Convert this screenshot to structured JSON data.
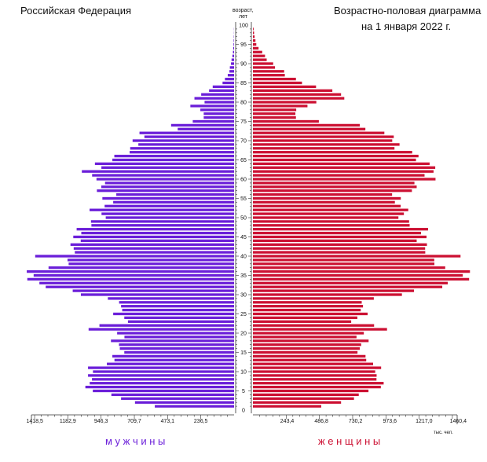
{
  "header": {
    "region": "Российская Федерация",
    "title_line1": "Возрастно-половая диаграмма",
    "title_line2": "на 1 января 2022 г."
  },
  "axis": {
    "age_label_line1": "возраст,",
    "age_label_line2": "лет",
    "unit_label": "тыс. чел."
  },
  "legend": {
    "male": "м у ж ч и н ы",
    "female": "ж е н щ и н ы"
  },
  "colors": {
    "male": "#6B1FD9",
    "female": "#CC1133"
  },
  "chart_data": {
    "type": "population-pyramid",
    "title": "Возрастно-половая диаграмма",
    "subtitle": "на 1 января 2022 г.",
    "age_ticks": [
      0,
      5,
      10,
      15,
      20,
      25,
      30,
      35,
      40,
      45,
      50,
      55,
      60,
      65,
      70,
      75,
      80,
      85,
      90,
      95,
      100
    ],
    "male_ticks": [
      "1418,5",
      "1182,9",
      "946,3",
      "709,7",
      "473,1",
      "236,5"
    ],
    "female_ticks": [
      "243,4",
      "486,8",
      "730,2",
      "973,6",
      "1217,0",
      "1460,4"
    ],
    "xlim": [
      0,
      1520
    ],
    "ages": [
      1,
      2,
      3,
      4,
      5,
      6,
      7,
      8,
      9,
      10,
      11,
      12,
      13,
      14,
      15,
      16,
      17,
      18,
      19,
      20,
      21,
      22,
      23,
      24,
      25,
      26,
      27,
      28,
      29,
      30,
      31,
      32,
      33,
      34,
      35,
      36,
      37,
      38,
      39,
      40,
      41,
      42,
      43,
      44,
      45,
      46,
      47,
      48,
      49,
      50,
      51,
      52,
      53,
      54,
      55,
      56,
      57,
      58,
      59,
      60,
      61,
      62,
      63,
      64,
      65,
      66,
      67,
      68,
      69,
      70,
      71,
      72,
      73,
      74,
      75,
      76,
      77,
      78,
      79,
      80,
      81,
      82,
      83,
      84,
      85,
      86,
      87,
      88,
      89,
      90,
      91,
      92,
      93,
      94,
      95,
      96,
      97,
      98,
      99
    ],
    "series": [
      {
        "name": "м у ж ч и н ы",
        "values": [
          564,
          705,
          804,
          873,
          1005,
          1058,
          1027,
          1011,
          1039,
          1004,
          1039,
          905,
          851,
          866,
          781,
          813,
          819,
          876,
          780,
          832,
          1035,
          958,
          755,
          781,
          860,
          796,
          804,
          818,
          898,
          1090,
          1148,
          1340,
          1385,
          1471,
          1426,
          1475,
          1320,
          1177,
          1185,
          1415,
          1133,
          1141,
          1164,
          1091,
          1144,
          1087,
          1120,
          1015,
          1018,
          913,
          943,
          1028,
          921,
          860,
          937,
          838,
          976,
          945,
          918,
          979,
          1010,
          1083,
          944,
          990,
          866,
          852,
          743,
          739,
          681,
          722,
          638,
          673,
          401,
          448,
          294,
          216,
          216,
          240,
          311,
          210,
          282,
          234,
          178,
          152,
          82,
          65,
          45,
          33,
          30,
          22,
          18,
          12,
          8,
          6,
          4,
          3,
          2,
          1,
          1
        ]
      },
      {
        "name": "ж е н щ и н ы",
        "values": [
          486,
          627,
          719,
          753,
          822,
          910,
          930,
          879,
          880,
          870,
          912,
          855,
          806,
          801,
          744,
          760,
          770,
          823,
          737,
          789,
          954,
          862,
          699,
          743,
          816,
          767,
          783,
          774,
          860,
          1060,
          1146,
          1347,
          1386,
          1538,
          1493,
          1544,
          1368,
          1291,
          1290,
          1477,
          1226,
          1225,
          1238,
          1165,
          1235,
          1196,
          1246,
          1115,
          1111,
          1035,
          1074,
          1105,
          1051,
          1010,
          1052,
          990,
          1131,
          1165,
          1149,
          1299,
          1221,
          1285,
          1297,
          1257,
          1160,
          1178,
          1133,
          1007,
          1043,
          991,
          1002,
          935,
          800,
          760,
          469,
          306,
          302,
          308,
          388,
          451,
          650,
          627,
          565,
          449,
          349,
          306,
          227,
          222,
          157,
          144,
          98,
          86,
          66,
          40,
          24,
          18,
          12,
          8,
          5
        ]
      }
    ]
  }
}
